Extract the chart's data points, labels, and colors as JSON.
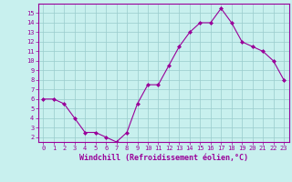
{
  "x": [
    0,
    1,
    2,
    3,
    4,
    5,
    6,
    7,
    8,
    9,
    10,
    11,
    12,
    13,
    14,
    15,
    16,
    17,
    18,
    19,
    20,
    21,
    22,
    23
  ],
  "y": [
    6,
    6,
    5.5,
    4,
    2.5,
    2.5,
    2,
    1.5,
    2.5,
    5.5,
    7.5,
    7.5,
    9.5,
    11.5,
    13,
    14,
    14,
    15.5,
    14,
    12,
    11.5,
    11,
    10,
    8
  ],
  "line_color": "#990099",
  "marker": "D",
  "marker_size": 2,
  "bg_color": "#c8f0ee",
  "grid_color": "#99cccc",
  "xlabel": "Windchill (Refroidissement éolien,°C)",
  "ylabel": "",
  "xlim": [
    -0.5,
    23.5
  ],
  "ylim": [
    1.5,
    16
  ],
  "yticks": [
    2,
    3,
    4,
    5,
    6,
    7,
    8,
    9,
    10,
    11,
    12,
    13,
    14,
    15
  ],
  "xticks": [
    0,
    1,
    2,
    3,
    4,
    5,
    6,
    7,
    8,
    9,
    10,
    11,
    12,
    13,
    14,
    15,
    16,
    17,
    18,
    19,
    20,
    21,
    22,
    23
  ],
  "tick_color": "#990099",
  "font_color": "#990099",
  "tick_fontsize": 5.0,
  "xlabel_fontsize": 6.0,
  "spine_color": "#990099"
}
